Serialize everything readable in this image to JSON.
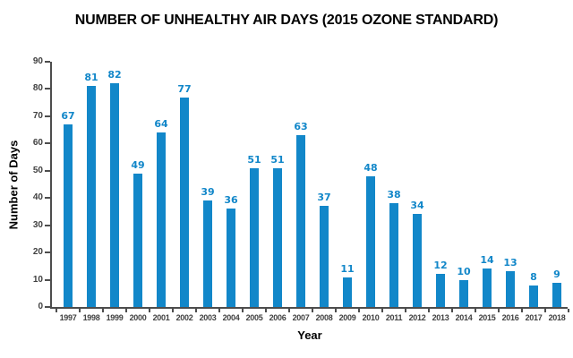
{
  "chart_data": {
    "type": "bar",
    "title": "NUMBER OF UNHEALTHY AIR DAYS (2015 OZONE STANDARD)",
    "xlabel": "Year",
    "ylabel": "Number of Days",
    "categories": [
      "1997",
      "1998",
      "1999",
      "2000",
      "2001",
      "2002",
      "2003",
      "2004",
      "2005",
      "2006",
      "2007",
      "2008",
      "2009",
      "2010",
      "2011",
      "2012",
      "2013",
      "2014",
      "2015",
      "2016",
      "2017",
      "2018"
    ],
    "values": [
      67,
      81,
      82,
      49,
      64,
      77,
      39,
      36,
      51,
      51,
      63,
      37,
      11,
      48,
      38,
      34,
      12,
      10,
      14,
      13,
      8,
      9
    ],
    "ylim": [
      0,
      90
    ],
    "yticks": [
      0,
      10,
      20,
      30,
      40,
      50,
      60,
      70,
      80,
      90
    ],
    "grid": false,
    "legend_position": "none",
    "data_labels_shown": true,
    "bar_color": "#1287c9",
    "value_label_color": "#1287c9",
    "axis_color": "#4d4d4d",
    "tick_label_color": "#404040",
    "background_color": "#ffffff"
  }
}
